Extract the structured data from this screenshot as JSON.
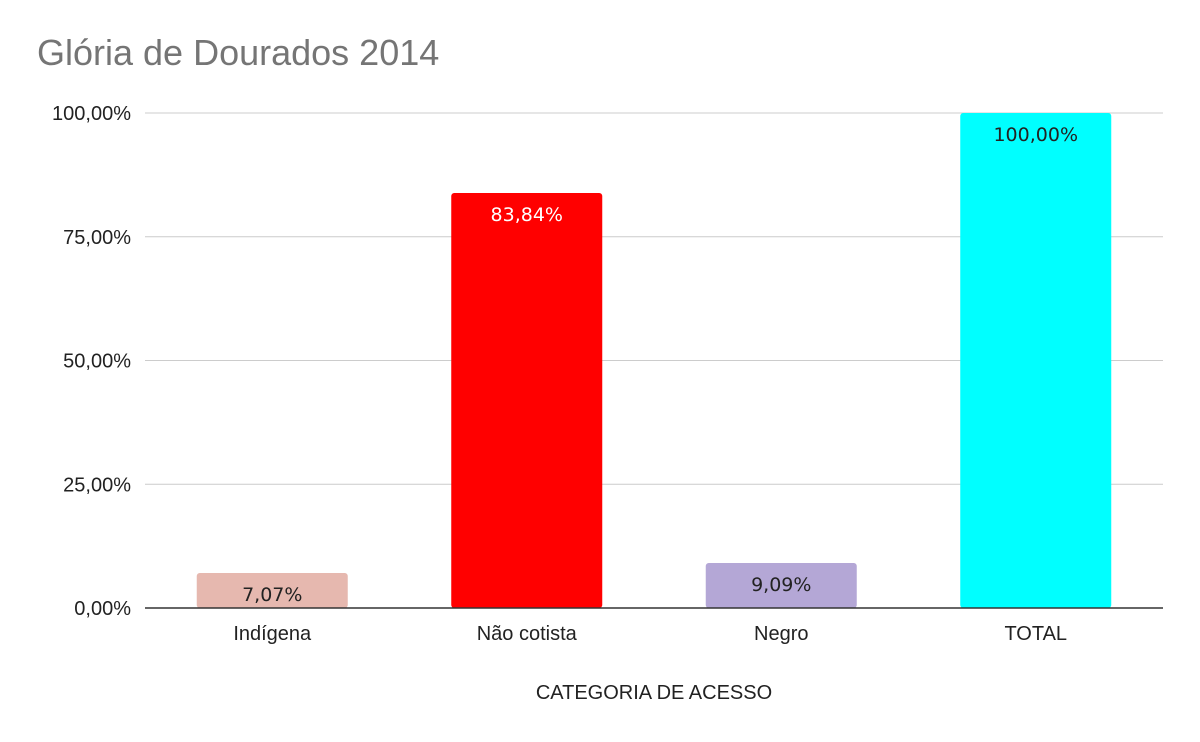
{
  "chart_data": {
    "type": "bar",
    "title": "Glória de Dourados 2014",
    "xlabel": "CATEGORIA DE ACESSO",
    "ylabel": "",
    "categories": [
      "Indígena",
      "Não cotista",
      "Negro",
      "TOTAL"
    ],
    "values": [
      7.07,
      83.84,
      9.09,
      100.0
    ],
    "data_labels": [
      "7,07%",
      "83,84%",
      "9,09%",
      "100,00%"
    ],
    "bar_colors": [
      "#e6b8af",
      "#ff0000",
      "#b4a7d6",
      "#00ffff"
    ],
    "label_colors": [
      "#222222",
      "#ffffff",
      "#222222",
      "#222222"
    ],
    "ylim": [
      0,
      100
    ],
    "yticks": [
      0,
      25,
      50,
      75,
      100
    ],
    "ytick_labels": [
      "0,00%",
      "25,00%",
      "50,00%",
      "75,00%",
      "100,00%"
    ],
    "grid": true,
    "legend": "none"
  }
}
